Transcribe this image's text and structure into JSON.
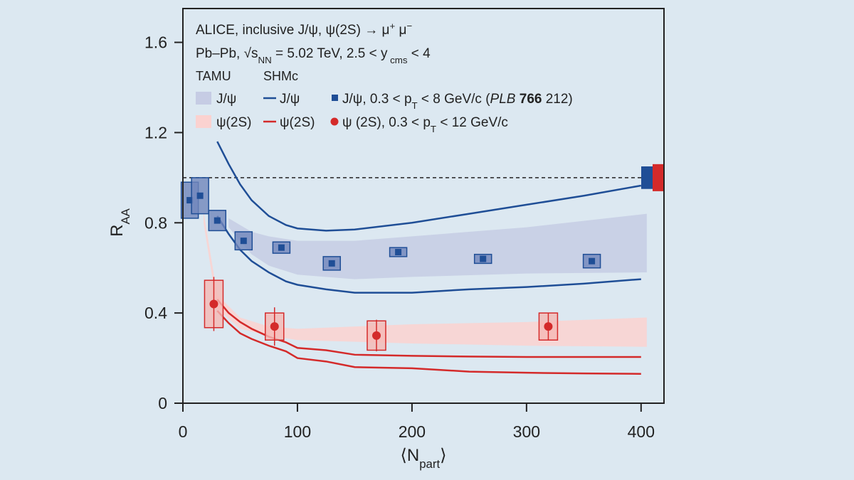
{
  "chart_data": {
    "type": "physics",
    "title_lines": [
      [
        {
          "t": "ALICE, inclusive J/ψ, ψ(2S) → μ"
        },
        {
          "sup": "+"
        },
        {
          "t": " μ"
        },
        {
          "sup": "−"
        }
      ],
      [
        {
          "t": "Pb–Pb, √s"
        },
        {
          "sub": "NN"
        },
        {
          "t": " = 5.02 TeV, 2.5 < y"
        },
        {
          "sub": " cms"
        },
        {
          "t": " < 4"
        }
      ]
    ],
    "x_label": [
      {
        "t": "⟨N"
      },
      {
        "sub": "part"
      },
      {
        "t": "⟩"
      }
    ],
    "y_label": [
      {
        "t": "R"
      },
      {
        "sub": "AA"
      }
    ],
    "xlim": [
      0,
      420
    ],
    "ylim": [
      0,
      1.75
    ],
    "xticks": [
      0,
      100,
      200,
      300,
      400
    ],
    "yticks": [
      0,
      0.4,
      0.8,
      1.2,
      1.6
    ],
    "reference_line": 1,
    "global_uncertainty": [
      {
        "color": "#1f4e96",
        "value": 1,
        "error": 0.05
      },
      {
        "color": "#d42a2a",
        "value": 1,
        "error": 0.06
      }
    ],
    "groups": [
      {
        "title": "TAMU",
        "series": [
          {
            "kind": "band",
            "name": [
              {
                "t": "J/ψ"
              }
            ],
            "color": "#c6cce4",
            "x": [
              40,
              50,
              60,
              75,
              100,
              150,
              200,
              300,
              405
            ],
            "upper": [
              0.82,
              0.79,
              0.76,
              0.74,
              0.72,
              0.72,
              0.74,
              0.78,
              0.84
            ],
            "lower": [
              0.78,
              0.72,
              0.66,
              0.61,
              0.57,
              0.55,
              0.56,
              0.575,
              0.58
            ]
          },
          {
            "kind": "band",
            "name": [
              {
                "t": "ψ(2S)"
              }
            ],
            "color": "#fbd2d0",
            "x": [
              18,
              30,
              50,
              75,
              100,
              200,
              300,
              405
            ],
            "upper": [
              0.85,
              0.48,
              0.38,
              0.34,
              0.33,
              0.35,
              0.36,
              0.38
            ],
            "lower": [
              0.8,
              0.42,
              0.33,
              0.3,
              0.28,
              0.265,
              0.255,
              0.25
            ]
          }
        ]
      },
      {
        "title": "SHMc",
        "series": [
          {
            "kind": "lines",
            "name": [
              {
                "t": "J/ψ"
              }
            ],
            "color": "#1f4e96",
            "x": [
              30,
              40,
              50,
              60,
              75,
              90,
              100,
              125,
              150,
              200,
              250,
              300,
              350,
              400
            ],
            "upper": [
              1.16,
              1.06,
              0.97,
              0.9,
              0.83,
              0.79,
              0.775,
              0.765,
              0.77,
              0.8,
              0.84,
              0.88,
              0.92,
              0.965
            ],
            "lower": [
              0.83,
              0.75,
              0.68,
              0.63,
              0.58,
              0.54,
              0.525,
              0.505,
              0.49,
              0.49,
              0.505,
              0.515,
              0.53,
              0.55
            ]
          },
          {
            "kind": "lines",
            "name": [
              {
                "t": "ψ(2S)"
              }
            ],
            "color": "#d42a2a",
            "x": [
              30,
              40,
              50,
              60,
              75,
              90,
              100,
              125,
              150,
              200,
              250,
              300,
              350,
              400
            ],
            "upper": [
              0.46,
              0.4,
              0.36,
              0.33,
              0.295,
              0.27,
              0.245,
              0.235,
              0.215,
              0.21,
              0.207,
              0.205,
              0.205,
              0.205
            ],
            "lower": [
              0.41,
              0.355,
              0.31,
              0.285,
              0.255,
              0.23,
              0.2,
              0.185,
              0.16,
              0.155,
              0.14,
              0.135,
              0.132,
              0.13
            ]
          }
        ]
      },
      {
        "series": [
          {
            "kind": "points",
            "marker": "square",
            "color": "#1f4e96",
            "box_color": "#7186bb",
            "name": [
              {
                "t": "J/ψ, 0.3 < p"
              },
              {
                "sub": "T"
              },
              {
                "t": " < 8 GeV/c ("
              },
              {
                "i": "PLB"
              },
              {
                "t": " "
              },
              {
                "b": "766"
              },
              {
                "t": " 212)"
              }
            ],
            "x": [
              6,
              15,
              30,
              53,
              86,
              130,
              188,
              262,
              357
            ],
            "values": [
              0.9,
              0.92,
              0.81,
              0.72,
              0.69,
              0.62,
              0.67,
              0.64,
              0.63
            ],
            "sys": [
              0.08,
              0.08,
              0.045,
              0.04,
              0.025,
              0.03,
              0.02,
              0.02,
              0.03
            ]
          },
          {
            "kind": "points",
            "marker": "circle",
            "color": "#d42a2a",
            "box_color": "#f5b8b4",
            "name": [
              {
                "t": "ψ (2S), 0.3 < p"
              },
              {
                "sub": "T"
              },
              {
                "t": " < 12 GeV/c"
              }
            ],
            "x": [
              27,
              80,
              169,
              319
            ],
            "values": [
              0.44,
              0.34,
              0.3,
              0.34
            ],
            "sys": [
              0.105,
              0.06,
              0.065,
              0.06
            ],
            "stat": [
              0.12,
              0.085,
              0.07,
              0.06
            ]
          }
        ]
      }
    ]
  }
}
